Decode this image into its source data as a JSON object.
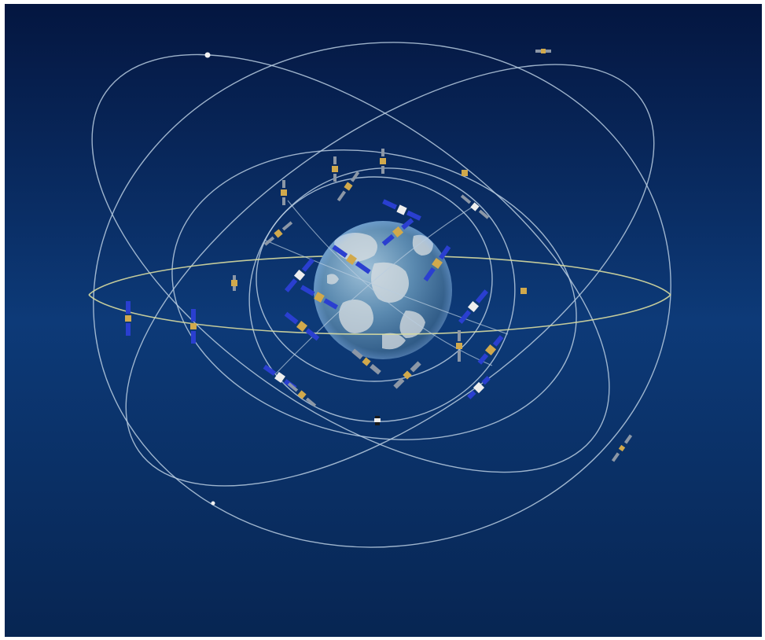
{
  "image": {
    "subject": "satellite-constellation-around-earth"
  },
  "colors": {
    "background_top": "#051a45",
    "background_mid": "#0d3a78",
    "background_bottom": "#072552",
    "orbit_line": "#b9cde0",
    "equatorial_orbit_line": "#d8dca0",
    "earth_ocean": "#4f7fa5",
    "earth_land": "#d9dfe2",
    "solar_panel_blue": "#2a3fd0",
    "solar_panel_gray": "#8c97a6",
    "satellite_body_gold": "#d1a94c"
  }
}
